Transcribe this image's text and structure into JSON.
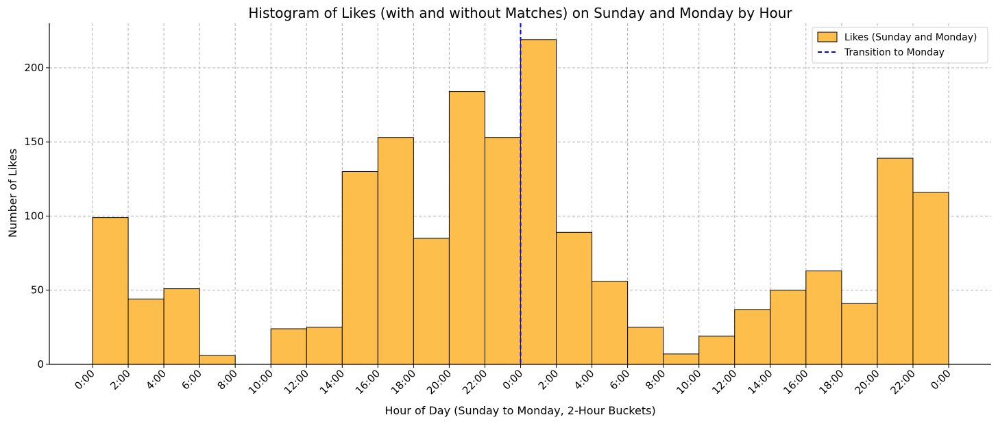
{
  "chart_data": {
    "type": "bar",
    "title": "Histogram of Likes (with and without Matches) on Sunday and Monday by Hour",
    "xlabel": "Hour of Day (Sunday to Monday, 2-Hour Buckets)",
    "ylabel": "Number of Likes",
    "tick_labels": [
      "0:00",
      "2:00",
      "4:00",
      "6:00",
      "8:00",
      "10:00",
      "12:00",
      "14:00",
      "16:00",
      "18:00",
      "20:00",
      "22:00",
      "0:00",
      "2:00",
      "4:00",
      "6:00",
      "8:00",
      "10:00",
      "12:00",
      "14:00",
      "16:00",
      "18:00",
      "20:00",
      "22:00",
      "0:00"
    ],
    "y_ticks": [
      0,
      50,
      100,
      150,
      200
    ],
    "ylim": [
      0,
      230
    ],
    "bin_edges_hours": [
      0,
      48
    ],
    "bin_width_hours": 2,
    "series": [
      {
        "name": "Likes (Sunday and Monday)",
        "values": [
          99,
          44,
          51,
          6,
          0,
          24,
          25,
          130,
          153,
          85,
          184,
          153,
          219,
          89,
          56,
          25,
          7,
          19,
          37,
          50,
          63,
          41,
          139,
          116
        ],
        "color": "#FDBE4C",
        "edge_color": "#000000"
      }
    ],
    "annotations": [
      {
        "type": "vline",
        "x_hour": 24,
        "label": "Transition to Monday",
        "color": "#0000FF",
        "style": "dashed"
      }
    ],
    "grid": true,
    "legend_position": "top-right"
  }
}
